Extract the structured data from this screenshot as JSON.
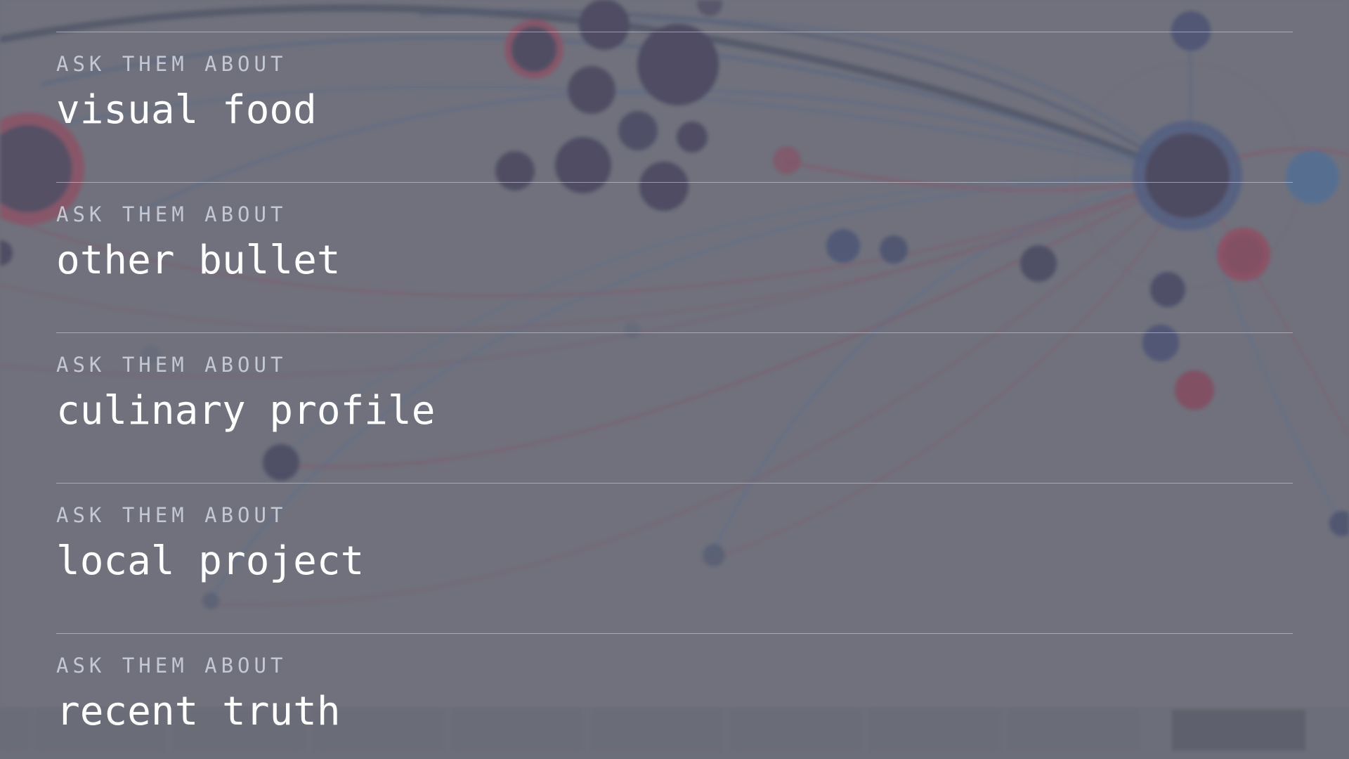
{
  "prompts": [
    {
      "kicker": "ASK THEM ABOUT",
      "topic": "visual food"
    },
    {
      "kicker": "ASK THEM ABOUT",
      "topic": "other bullet"
    },
    {
      "kicker": "ASK THEM ABOUT",
      "topic": "culinary profile"
    },
    {
      "kicker": "ASK THEM ABOUT",
      "topic": "local project"
    },
    {
      "kicker": "ASK THEM ABOUT",
      "topic": "recent truth"
    }
  ],
  "colors": {
    "background": "#6e6f78",
    "node_dark": "#2a2348",
    "node_red": "#b0304e",
    "node_blue": "#3b6fae",
    "text_primary": "#ffffff",
    "text_secondary": "#c3c8d2"
  },
  "icons": {
    "timeline": "blurred-year-timeline",
    "network": "blurred-network-graph"
  }
}
